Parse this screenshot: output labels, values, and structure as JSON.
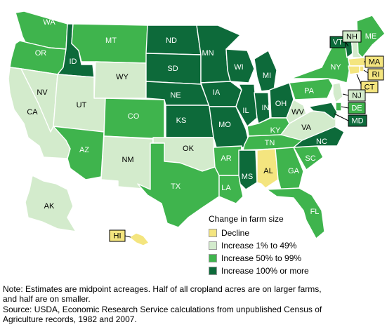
{
  "legend": {
    "title": "Change in farm size",
    "items": [
      {
        "key": "decline",
        "label": "Decline",
        "color": "#f4e57f"
      },
      {
        "key": "low",
        "label": "Increase 1% to 49%",
        "color": "#d3ebcc"
      },
      {
        "key": "mid",
        "label": "Increase 50% to 99%",
        "color": "#3fb44d"
      },
      {
        "key": "high",
        "label": "Increase 100% or more",
        "color": "#0d6a3a"
      }
    ]
  },
  "states": {
    "WA": "mid",
    "OR": "mid",
    "CA": "low",
    "NV": "low",
    "ID": "high",
    "MT": "mid",
    "WY": "low",
    "UT": "low",
    "AZ": "mid",
    "CO": "mid",
    "NM": "low",
    "ND": "high",
    "SD": "high",
    "NE": "high",
    "KS": "high",
    "OK": "low",
    "TX": "mid",
    "MN": "high",
    "IA": "high",
    "MO": "high",
    "AR": "mid",
    "LA": "mid",
    "WI": "high",
    "IL": "high",
    "MI": "high",
    "IN": "high",
    "OH": "high",
    "KY": "mid",
    "TN": "mid",
    "MS": "high",
    "AL": "decline",
    "GA": "mid",
    "FL": "mid",
    "SC": "mid",
    "NC": "high",
    "VA": "low",
    "WV": "low",
    "PA": "mid",
    "NY": "mid",
    "VT": "high",
    "NH": "low",
    "ME": "mid",
    "MA": "decline",
    "RI": "decline",
    "CT": "decline",
    "NJ": "low",
    "DE": "mid",
    "MD": "high",
    "AK": "low",
    "HI": "decline"
  },
  "notes": {
    "note": "Note: Estimates are midpoint acreages. Half of all cropland acres are on larger farms,\nand half are on smaller.",
    "source": "Source: USDA, Economic Research Service calculations from unpublished Census of\nAgriculture records, 1982 and 2007."
  }
}
